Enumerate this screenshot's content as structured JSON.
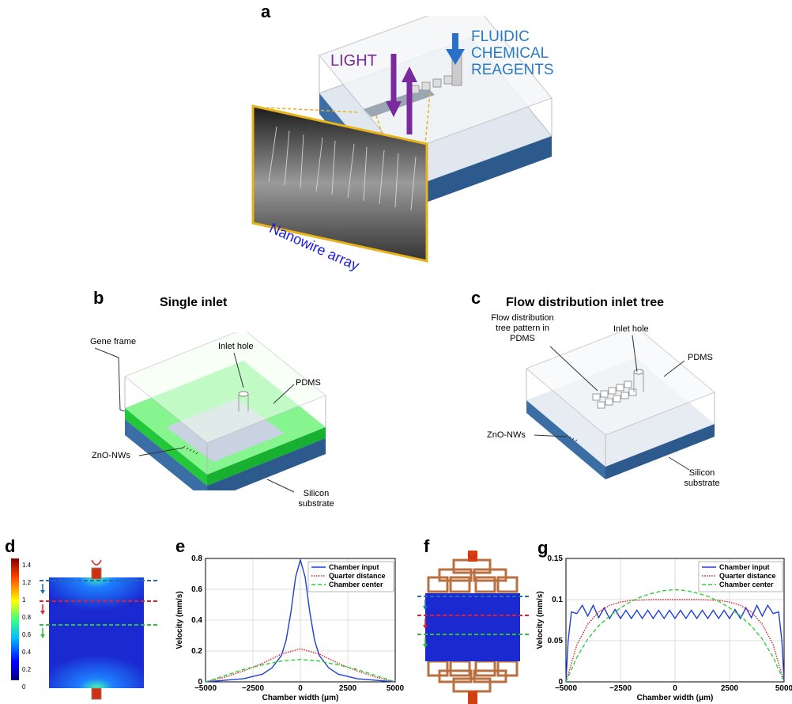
{
  "panels": {
    "a": "a",
    "b": "b",
    "c": "c",
    "d": "d",
    "e": "e",
    "f": "f",
    "g": "g"
  },
  "panel_a": {
    "light": "LIGHT",
    "reagents": [
      "FLUIDIC",
      "CHEMICAL",
      "REAGENTS"
    ],
    "nanowire": "Nanowire array"
  },
  "panel_b": {
    "title": "Single inlet",
    "gene_frame": "Gene frame",
    "inlet_hole": "Inlet hole",
    "pdms": "PDMS",
    "zno": "ZnO-NWs",
    "silicon": [
      "Silicon",
      "substrate"
    ]
  },
  "panel_c": {
    "title": "Flow distribution inlet tree",
    "tree": [
      "Flow distribution",
      "tree pattern in",
      "PDMS"
    ],
    "inlet_hole": "Inlet hole",
    "pdms": "PDMS",
    "zno": "ZnO-NWs",
    "silicon": [
      "Silicon",
      "substrate"
    ]
  },
  "colorbar": {
    "ticks": [
      "1.4",
      "1.2",
      "1",
      "0.8",
      "0.6",
      "0.4",
      "0.2",
      "0"
    ]
  },
  "colors": {
    "chamber_input": "#1f3fd6",
    "quarter_distance": "#e0202a",
    "chamber_center": "#2fcf3a",
    "substrate": "#3a6ea5",
    "green_film": "#5df06a",
    "purple": "#7a2a9c",
    "blue_text": "#2a7bc4",
    "gold": "#e8b21a"
  },
  "chart_data": [
    {
      "type": "line",
      "panel": "e",
      "xlabel": "Chamber width (μm)",
      "ylabel": "Velocity (mm/s)",
      "xlim": [
        -5000,
        5000
      ],
      "ylim": [
        0,
        0.8
      ],
      "xticks": [
        "−5000",
        "−2500",
        "0",
        "2500",
        "5000"
      ],
      "yticks": [
        "0",
        "0.2",
        "0.4",
        "0.6",
        "0.8"
      ],
      "grid": true,
      "legend": "top-right",
      "series": [
        {
          "name": "Chamber input",
          "style": "solid",
          "x": [
            -5000,
            -4000,
            -3000,
            -2000,
            -1500,
            -1000,
            -750,
            -500,
            -250,
            0,
            250,
            500,
            750,
            1000,
            1500,
            2000,
            3000,
            4000,
            5000
          ],
          "values": [
            0.0,
            0.01,
            0.02,
            0.05,
            0.09,
            0.17,
            0.27,
            0.45,
            0.68,
            0.79,
            0.68,
            0.45,
            0.27,
            0.17,
            0.09,
            0.05,
            0.02,
            0.01,
            0.0
          ]
        },
        {
          "name": "Quarter distance",
          "style": "dotted",
          "x": [
            -5000,
            -4000,
            -3000,
            -2000,
            -1000,
            0,
            1000,
            2000,
            3000,
            4000,
            5000
          ],
          "values": [
            0.0,
            0.03,
            0.07,
            0.12,
            0.18,
            0.215,
            0.18,
            0.12,
            0.07,
            0.03,
            0.0
          ]
        },
        {
          "name": "Chamber center",
          "style": "dashed",
          "x": [
            -5000,
            -4000,
            -3000,
            -2000,
            -1000,
            0,
            1000,
            2000,
            3000,
            4000,
            5000
          ],
          "values": [
            0.0,
            0.04,
            0.08,
            0.11,
            0.135,
            0.145,
            0.135,
            0.11,
            0.08,
            0.04,
            0.0
          ]
        }
      ]
    },
    {
      "type": "line",
      "panel": "g",
      "xlabel": "Chamber width (μm)",
      "ylabel": "Velocity (mm/s)",
      "xlim": [
        -5000,
        5000
      ],
      "ylim": [
        0,
        0.15
      ],
      "xticks": [
        "−5000",
        "−2500",
        "0",
        "2500",
        "5000"
      ],
      "yticks": [
        "0",
        "0.05",
        "0.1",
        "0.15"
      ],
      "grid": true,
      "legend": "top-right",
      "series": [
        {
          "name": "Chamber input",
          "style": "solid",
          "x": [
            -5000,
            -4900,
            -4750,
            -4500,
            -4250,
            -4000,
            -3750,
            -3500,
            -3250,
            -3000,
            -2750,
            -2500,
            -2250,
            -2000,
            -1750,
            -1500,
            -1250,
            -1000,
            -750,
            -500,
            -250,
            0,
            250,
            500,
            750,
            1000,
            1250,
            1500,
            1750,
            2000,
            2250,
            2500,
            2750,
            3000,
            3250,
            3500,
            3750,
            4000,
            4250,
            4500,
            4750,
            4900,
            5000
          ],
          "values": [
            0.0,
            0.05,
            0.085,
            0.083,
            0.093,
            0.08,
            0.093,
            0.078,
            0.09,
            0.077,
            0.088,
            0.077,
            0.087,
            0.077,
            0.087,
            0.077,
            0.087,
            0.077,
            0.087,
            0.077,
            0.087,
            0.077,
            0.087,
            0.077,
            0.087,
            0.077,
            0.087,
            0.077,
            0.087,
            0.077,
            0.087,
            0.077,
            0.088,
            0.077,
            0.09,
            0.078,
            0.093,
            0.08,
            0.093,
            0.083,
            0.085,
            0.05,
            0.0
          ]
        },
        {
          "name": "Quarter distance",
          "style": "dotted",
          "x": [
            -5000,
            -4500,
            -4000,
            -3500,
            -3000,
            -2500,
            -2000,
            -1000,
            0,
            1000,
            2000,
            2500,
            3000,
            3500,
            4000,
            4500,
            5000
          ],
          "values": [
            0.0,
            0.045,
            0.07,
            0.085,
            0.093,
            0.097,
            0.099,
            0.1,
            0.1,
            0.1,
            0.099,
            0.097,
            0.093,
            0.085,
            0.07,
            0.045,
            0.0
          ]
        },
        {
          "name": "Chamber center",
          "style": "dashed",
          "x": [
            -5000,
            -4500,
            -4000,
            -3500,
            -3000,
            -2500,
            -2000,
            -1500,
            -1000,
            -500,
            0,
            500,
            1000,
            1500,
            2000,
            2500,
            3000,
            3500,
            4000,
            4500,
            5000
          ],
          "values": [
            0.0,
            0.03,
            0.052,
            0.068,
            0.08,
            0.09,
            0.098,
            0.104,
            0.108,
            0.111,
            0.112,
            0.111,
            0.108,
            0.104,
            0.098,
            0.09,
            0.08,
            0.068,
            0.052,
            0.03,
            0.0
          ]
        }
      ]
    }
  ]
}
